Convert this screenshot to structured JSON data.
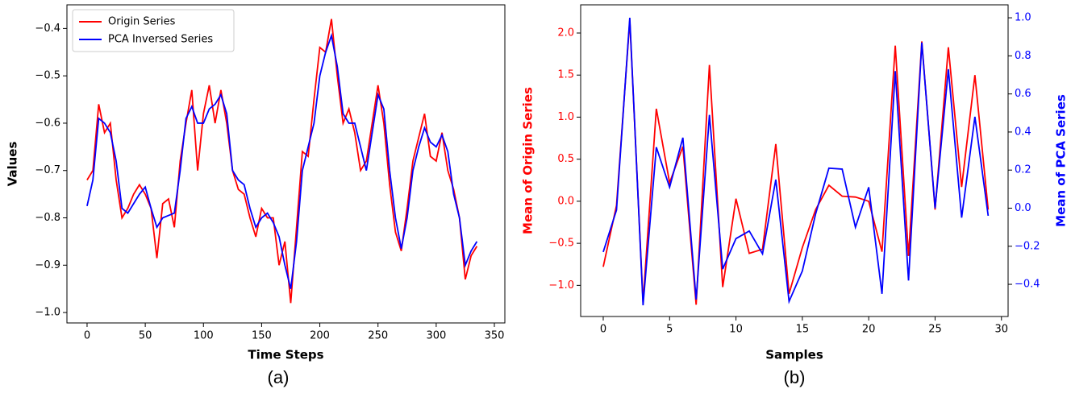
{
  "chart_data": [
    {
      "type": "line",
      "caption": "(a)",
      "xlabel": "Time Steps",
      "ylabel": "Values",
      "x": [
        0,
        5,
        10,
        15,
        20,
        25,
        30,
        35,
        40,
        45,
        50,
        55,
        60,
        65,
        70,
        75,
        80,
        85,
        90,
        95,
        100,
        105,
        110,
        115,
        120,
        125,
        130,
        135,
        140,
        145,
        150,
        155,
        160,
        165,
        170,
        175,
        180,
        185,
        190,
        195,
        200,
        205,
        210,
        215,
        220,
        225,
        230,
        235,
        240,
        245,
        250,
        255,
        260,
        265,
        270,
        275,
        280,
        285,
        290,
        295,
        300,
        305,
        310,
        315,
        320,
        325,
        330,
        335
      ],
      "series": [
        {
          "name": "Origin Series",
          "color": "#ff0000",
          "values": [
            -0.72,
            -0.7,
            -0.56,
            -0.62,
            -0.6,
            -0.72,
            -0.8,
            -0.78,
            -0.75,
            -0.73,
            -0.75,
            -0.78,
            -0.885,
            -0.77,
            -0.76,
            -0.82,
            -0.68,
            -0.6,
            -0.53,
            -0.7,
            -0.58,
            -0.52,
            -0.6,
            -0.53,
            -0.6,
            -0.7,
            -0.74,
            -0.75,
            -0.8,
            -0.84,
            -0.78,
            -0.8,
            -0.8,
            -0.9,
            -0.85,
            -0.98,
            -0.82,
            -0.66,
            -0.67,
            -0.55,
            -0.44,
            -0.45,
            -0.38,
            -0.5,
            -0.6,
            -0.57,
            -0.62,
            -0.7,
            -0.68,
            -0.6,
            -0.52,
            -0.6,
            -0.73,
            -0.83,
            -0.87,
            -0.78,
            -0.68,
            -0.63,
            -0.58,
            -0.67,
            -0.68,
            -0.62,
            -0.7,
            -0.74,
            -0.8,
            -0.93,
            -0.88,
            -0.86
          ]
        },
        {
          "name": "PCA Inversed Series",
          "color": "#0000ff",
          "values": [
            -0.775,
            -0.72,
            -0.59,
            -0.6,
            -0.62,
            -0.68,
            -0.78,
            -0.79,
            -0.77,
            -0.75,
            -0.735,
            -0.78,
            -0.82,
            -0.8,
            -0.795,
            -0.79,
            -0.7,
            -0.59,
            -0.565,
            -0.6,
            -0.6,
            -0.57,
            -0.56,
            -0.54,
            -0.58,
            -0.7,
            -0.72,
            -0.73,
            -0.78,
            -0.82,
            -0.8,
            -0.79,
            -0.81,
            -0.84,
            -0.9,
            -0.95,
            -0.85,
            -0.7,
            -0.65,
            -0.6,
            -0.5,
            -0.45,
            -0.415,
            -0.48,
            -0.58,
            -0.6,
            -0.6,
            -0.65,
            -0.7,
            -0.62,
            -0.54,
            -0.57,
            -0.7,
            -0.8,
            -0.865,
            -0.8,
            -0.7,
            -0.65,
            -0.61,
            -0.64,
            -0.65,
            -0.625,
            -0.66,
            -0.75,
            -0.8,
            -0.9,
            -0.87,
            -0.85
          ]
        }
      ],
      "xlim": [
        -17.3,
        359
      ],
      "xticks": [
        0,
        50,
        100,
        150,
        200,
        250,
        300,
        350
      ],
      "ylim": [
        -1.022,
        -0.35
      ],
      "yticks": [
        {
          "value": -1.0,
          "label": "−1.0"
        },
        {
          "value": -0.9,
          "label": "−0.9"
        },
        {
          "value": -0.8,
          "label": "−0.8"
        },
        {
          "value": -0.7,
          "label": "−0.7"
        },
        {
          "value": -0.6,
          "label": "−0.6"
        },
        {
          "value": -0.5,
          "label": "−0.5"
        },
        {
          "value": -0.4,
          "label": "−0.4"
        }
      ],
      "legend": "upper left"
    },
    {
      "type": "line",
      "caption": "(b)",
      "xlabel": "Samples",
      "ylabel": "Mean of Origin Series",
      "y2label": "Mean of PCA Series",
      "x": [
        0,
        1,
        2,
        3,
        4,
        5,
        6,
        7,
        8,
        9,
        10,
        11,
        12,
        13,
        14,
        15,
        16,
        17,
        18,
        19,
        20,
        21,
        22,
        23,
        24,
        25,
        26,
        27,
        28,
        29
      ],
      "series": [
        {
          "name": "Mean of Origin Series",
          "color": "#ff0000",
          "values": [
            -0.78,
            -0.05,
            2.15,
            -1.2,
            1.1,
            0.22,
            0.65,
            -1.23,
            1.62,
            -1.02,
            0.03,
            -0.62,
            -0.57,
            0.68,
            -1.1,
            -0.55,
            -0.1,
            0.19,
            0.06,
            0.05,
            0.0,
            -0.6,
            1.85,
            -0.65,
            1.9,
            -0.1,
            1.83,
            0.17,
            1.5,
            -0.1
          ]
        },
        {
          "name": "Mean of PCA Series",
          "color": "#0000ff",
          "axis": "y2",
          "values": [
            -0.23,
            -0.01,
            1.0,
            -0.51,
            0.32,
            0.11,
            0.37,
            -0.48,
            0.49,
            -0.32,
            -0.16,
            -0.12,
            -0.24,
            0.15,
            -0.49,
            -0.33,
            -0.03,
            0.21,
            0.205,
            -0.1,
            0.11,
            -0.45,
            0.72,
            -0.38,
            0.87,
            0.0,
            0.73,
            -0.05,
            0.48,
            -0.04
          ]
        }
      ],
      "xlim": [
        -1.7,
        30.5
      ],
      "xticks": [
        0,
        5,
        10,
        15,
        20,
        25,
        30
      ],
      "ylim": [
        -1.37,
        2.335
      ],
      "yticks": [
        {
          "value": -1.0,
          "label": "−1.0"
        },
        {
          "value": -0.5,
          "label": "−0.5"
        },
        {
          "value": 0.0,
          "label": "0.0"
        },
        0.5,
        {
          "value": 1.0,
          "label": "1.0"
        },
        1.5,
        {
          "value": 2.0,
          "label": "2.0"
        }
      ],
      "y2lim": [
        -0.569,
        1.068
      ],
      "y2ticks": [
        {
          "value": -0.4,
          "label": "−0.4"
        },
        {
          "value": -0.2,
          "label": "−0.2"
        },
        {
          "value": 0.0,
          "label": "0.0"
        },
        0.2,
        0.4,
        0.6,
        0.8,
        {
          "value": 1.0,
          "label": "1.0"
        }
      ]
    }
  ]
}
